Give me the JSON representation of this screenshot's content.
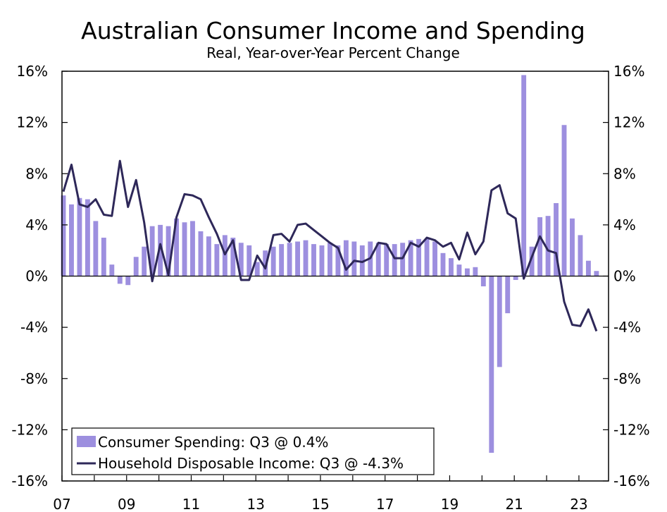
{
  "chart_data": {
    "type": "bar",
    "title": "Australian Consumer Income and Spending",
    "subtitle": "Real, Year-over-Year Percent Change",
    "ylim": [
      -16,
      16
    ],
    "y_ticks": [
      16,
      12,
      8,
      4,
      0,
      -4,
      -8,
      -12,
      -16
    ],
    "y_tick_labels": [
      "16%",
      "12%",
      "8%",
      "4%",
      "0%",
      "-4%",
      "-8%",
      "-12%",
      "-16%"
    ],
    "x_range": [
      2007.0,
      2023.917
    ],
    "x_ticks": [
      2007,
      2009,
      2011,
      2013,
      2015,
      2017,
      2019,
      2021,
      2023
    ],
    "x_tick_labels": [
      "07",
      "09",
      "11",
      "13",
      "15",
      "17",
      "19",
      "21",
      "23"
    ],
    "legend": {
      "placement": "bottom-left",
      "spending_label": "Consumer Spending: Q3 @ 0.4%",
      "income_label": "Household Disposable Income: Q3 @ -4.3%"
    },
    "colors": {
      "spending": "#9d8fdf",
      "income": "#2e2859",
      "axis": "#000000"
    },
    "series": [
      {
        "name": "Consumer Spending",
        "type": "bar",
        "start_year": 2007.0,
        "step": 0.25,
        "values": [
          6.3,
          5.6,
          6.1,
          6.0,
          4.3,
          3.0,
          0.9,
          -0.6,
          -0.7,
          1.5,
          2.3,
          3.9,
          4.0,
          3.9,
          4.5,
          4.2,
          4.3,
          3.5,
          3.1,
          2.5,
          3.2,
          3.0,
          2.6,
          2.4,
          1.1,
          2.0,
          2.3,
          2.5,
          2.6,
          2.7,
          2.8,
          2.5,
          2.4,
          2.6,
          2.4,
          2.8,
          2.7,
          2.4,
          2.7,
          2.6,
          2.5,
          2.5,
          2.6,
          2.8,
          2.9,
          2.9,
          2.7,
          1.8,
          1.4,
          0.9,
          0.6,
          0.7,
          -0.8,
          -13.8,
          -7.1,
          -2.9,
          -0.3,
          15.7,
          2.3,
          4.6,
          4.7,
          5.7,
          11.8,
          4.5,
          3.2,
          1.2,
          0.4
        ]
      },
      {
        "name": "Household Disposable Income",
        "type": "line",
        "start_year": 2007.0,
        "step": 0.25,
        "values": [
          6.6,
          8.7,
          5.6,
          5.4,
          6.0,
          4.8,
          4.7,
          9.0,
          5.4,
          7.5,
          4.2,
          -0.4,
          2.5,
          0.1,
          4.6,
          6.4,
          6.3,
          6.0,
          4.6,
          3.3,
          1.7,
          2.8,
          -0.3,
          -0.3,
          1.6,
          0.6,
          3.2,
          3.3,
          2.7,
          4.0,
          4.1,
          3.6,
          3.1,
          2.6,
          2.2,
          0.5,
          1.2,
          1.1,
          1.4,
          2.6,
          2.5,
          1.4,
          1.4,
          2.6,
          2.3,
          3.0,
          2.8,
          2.3,
          2.6,
          1.3,
          3.4,
          1.7,
          2.7,
          6.7,
          7.1,
          4.9,
          4.5,
          -0.2,
          1.5,
          3.1,
          2.0,
          1.8,
          -2.0,
          -3.8,
          -3.9,
          -2.6,
          -4.3
        ]
      }
    ]
  }
}
